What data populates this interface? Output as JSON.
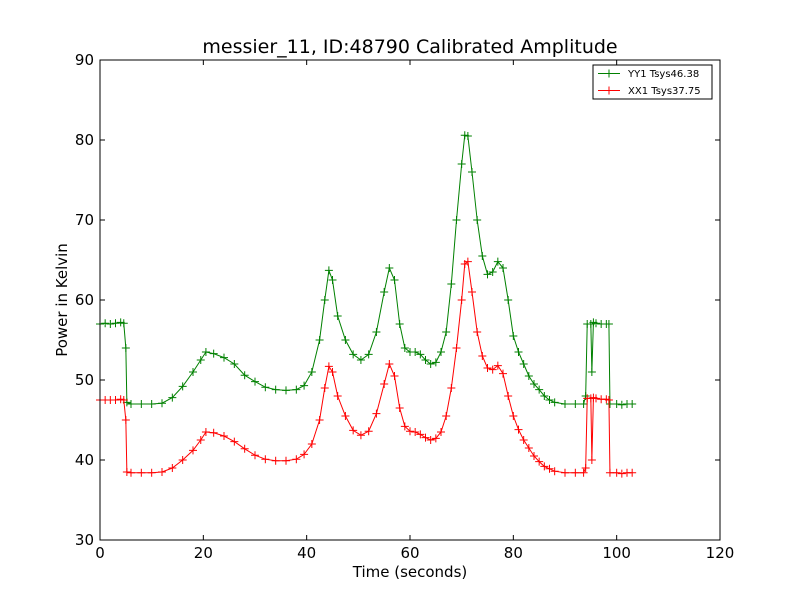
{
  "chart_data": {
    "type": "line",
    "title": "messier_11, ID:48790 Calibrated Amplitude",
    "xlabel": "Time (seconds)",
    "ylabel": "Power in Kelvin",
    "xlim": [
      0,
      120
    ],
    "ylim": [
      30,
      90
    ],
    "xticks": [
      0,
      20,
      40,
      60,
      80,
      100,
      120
    ],
    "yticks": [
      30,
      40,
      50,
      60,
      70,
      80,
      90
    ],
    "grid": false,
    "legend_position": "top-right",
    "marker": "+",
    "series": [
      {
        "name": "YY1 Tsys46.38",
        "color": "#008000",
        "points": [
          [
            0,
            57
          ],
          [
            1,
            57.1
          ],
          [
            2,
            57
          ],
          [
            3,
            57.1
          ],
          [
            4,
            57.2
          ],
          [
            4.6,
            57.1
          ],
          [
            5,
            54
          ],
          [
            5.2,
            47.2
          ],
          [
            6,
            47
          ],
          [
            8,
            47
          ],
          [
            10,
            47
          ],
          [
            12,
            47.1
          ],
          [
            14,
            47.8
          ],
          [
            16,
            49.2
          ],
          [
            18,
            51
          ],
          [
            19.5,
            52.5
          ],
          [
            20.5,
            53.5
          ],
          [
            22,
            53.3
          ],
          [
            24,
            52.8
          ],
          [
            26,
            52
          ],
          [
            28,
            50.6
          ],
          [
            30,
            49.8
          ],
          [
            32,
            49.1
          ],
          [
            34,
            48.8
          ],
          [
            36,
            48.7
          ],
          [
            38,
            48.8
          ],
          [
            39.5,
            49.3
          ],
          [
            41,
            51
          ],
          [
            42.5,
            55
          ],
          [
            43.5,
            60
          ],
          [
            44.3,
            63.7
          ],
          [
            45,
            62.5
          ],
          [
            46,
            58
          ],
          [
            47.5,
            55
          ],
          [
            49,
            53.2
          ],
          [
            50.5,
            52.5
          ],
          [
            52,
            53.2
          ],
          [
            53.5,
            56
          ],
          [
            55,
            61
          ],
          [
            56,
            64
          ],
          [
            57,
            62.5
          ],
          [
            58,
            57
          ],
          [
            59,
            54
          ],
          [
            60,
            53.5
          ],
          [
            61,
            53.5
          ],
          [
            62,
            53.2
          ],
          [
            63,
            52.5
          ],
          [
            64,
            52
          ],
          [
            65,
            52.2
          ],
          [
            66,
            53.5
          ],
          [
            67,
            56
          ],
          [
            68,
            62
          ],
          [
            69,
            70
          ],
          [
            70,
            77
          ],
          [
            70.6,
            80.6
          ],
          [
            71.2,
            80.5
          ],
          [
            72,
            76
          ],
          [
            73,
            70
          ],
          [
            74,
            65.5
          ],
          [
            75,
            63.2
          ],
          [
            76,
            63.5
          ],
          [
            77,
            64.8
          ],
          [
            78,
            64
          ],
          [
            79,
            60
          ],
          [
            80,
            55.5
          ],
          [
            81,
            53.5
          ],
          [
            82,
            52
          ],
          [
            83,
            50.5
          ],
          [
            84,
            49.5
          ],
          [
            85,
            48.8
          ],
          [
            86,
            48
          ],
          [
            87,
            47.5
          ],
          [
            88,
            47.2
          ],
          [
            90,
            47
          ],
          [
            92,
            47
          ],
          [
            93.6,
            47
          ],
          [
            94,
            48
          ],
          [
            94.3,
            57
          ],
          [
            95,
            57
          ],
          [
            95.2,
            51
          ],
          [
            95.5,
            57.2
          ],
          [
            96,
            57.1
          ],
          [
            97,
            57
          ],
          [
            98,
            57
          ],
          [
            98.5,
            57
          ],
          [
            98.7,
            47
          ],
          [
            100,
            47
          ],
          [
            101,
            46.9
          ],
          [
            102,
            47
          ],
          [
            103,
            47
          ]
        ]
      },
      {
        "name": "XX1 Tsys37.75",
        "color": "#ff0000",
        "points": [
          [
            0,
            47.5
          ],
          [
            1,
            47.5
          ],
          [
            2,
            47.5
          ],
          [
            3,
            47.5
          ],
          [
            4,
            47.6
          ],
          [
            4.6,
            47.5
          ],
          [
            5,
            45
          ],
          [
            5.2,
            38.5
          ],
          [
            6,
            38.4
          ],
          [
            8,
            38.4
          ],
          [
            10,
            38.4
          ],
          [
            12,
            38.5
          ],
          [
            14,
            39
          ],
          [
            16,
            40
          ],
          [
            18,
            41.2
          ],
          [
            19.5,
            42.5
          ],
          [
            20.5,
            43.5
          ],
          [
            22,
            43.4
          ],
          [
            24,
            43
          ],
          [
            26,
            42.3
          ],
          [
            28,
            41.4
          ],
          [
            30,
            40.6
          ],
          [
            32,
            40.1
          ],
          [
            34,
            39.9
          ],
          [
            36,
            39.9
          ],
          [
            38,
            40.1
          ],
          [
            39.5,
            40.7
          ],
          [
            41,
            42
          ],
          [
            42.5,
            45
          ],
          [
            43.5,
            49
          ],
          [
            44.3,
            51.7
          ],
          [
            45,
            51
          ],
          [
            46,
            48
          ],
          [
            47.5,
            45.5
          ],
          [
            49,
            43.7
          ],
          [
            50.5,
            43.1
          ],
          [
            52,
            43.6
          ],
          [
            53.5,
            45.8
          ],
          [
            55,
            49.5
          ],
          [
            56,
            52
          ],
          [
            57,
            50.5
          ],
          [
            58,
            46.5
          ],
          [
            59,
            44.2
          ],
          [
            60,
            43.6
          ],
          [
            61,
            43.5
          ],
          [
            62,
            43.2
          ],
          [
            63,
            42.8
          ],
          [
            64,
            42.5
          ],
          [
            65,
            42.7
          ],
          [
            66,
            43.5
          ],
          [
            67,
            45.5
          ],
          [
            68,
            49
          ],
          [
            69,
            54
          ],
          [
            70,
            60
          ],
          [
            70.6,
            64.5
          ],
          [
            71.2,
            64.8
          ],
          [
            72,
            61
          ],
          [
            73,
            56
          ],
          [
            74,
            53
          ],
          [
            75,
            51.5
          ],
          [
            76,
            51.3
          ],
          [
            77,
            51.8
          ],
          [
            78,
            50.8
          ],
          [
            79,
            48
          ],
          [
            80,
            45.5
          ],
          [
            81,
            43.8
          ],
          [
            82,
            42.5
          ],
          [
            83,
            41.5
          ],
          [
            84,
            40.5
          ],
          [
            85,
            39.8
          ],
          [
            86,
            39.2
          ],
          [
            87,
            38.9
          ],
          [
            88,
            38.6
          ],
          [
            90,
            38.4
          ],
          [
            92,
            38.4
          ],
          [
            93.6,
            38.4
          ],
          [
            94,
            39
          ],
          [
            94.3,
            47.7
          ],
          [
            95,
            47.7
          ],
          [
            95.2,
            40
          ],
          [
            95.5,
            47.8
          ],
          [
            96,
            47.7
          ],
          [
            97,
            47.6
          ],
          [
            98,
            47.6
          ],
          [
            98.5,
            47.5
          ],
          [
            98.7,
            38.4
          ],
          [
            100,
            38.4
          ],
          [
            101,
            38.3
          ],
          [
            102,
            38.4
          ],
          [
            103,
            38.4
          ]
        ]
      }
    ]
  }
}
